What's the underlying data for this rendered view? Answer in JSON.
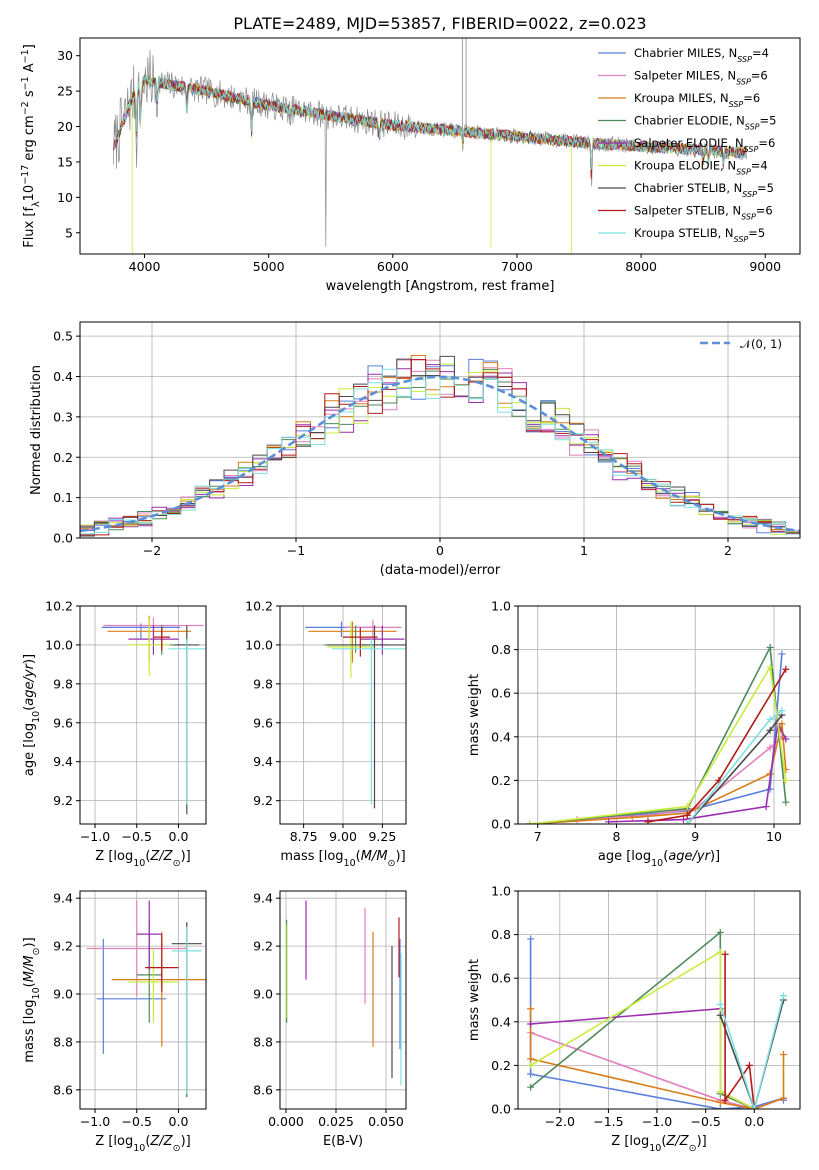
{
  "figure": {
    "title": "PLATE=2489, MJD=53857, FIBERID=0022, z=0.023"
  },
  "legend_models": [
    {
      "name": "Chabrier MILES, N_SSP=4",
      "base": "Chabrier MILES, N",
      "sub": "SSP",
      "tail": "=4",
      "color": "#5a7fe0"
    },
    {
      "name": "Salpeter MILES, N_SSP=6",
      "base": "Salpeter MILES, N",
      "sub": "SSP",
      "tail": "=6",
      "color": "#e37fbd"
    },
    {
      "name": "Kroupa MILES, N_SSP=6",
      "base": "Kroupa MILES, N",
      "sub": "SSP",
      "tail": "=6",
      "color": "#d97d16"
    },
    {
      "name": "Chabrier ELODIE, N_SSP=5",
      "base": "Chabrier ELODIE, N",
      "sub": "SSP",
      "tail": "=5",
      "color": "#4e8a5b"
    },
    {
      "name": "Salpeter ELODIE, N_SSP=6",
      "base": "Salpeter ELODIE, N",
      "sub": "SSP",
      "tail": "=6",
      "color": "#9b2fae"
    },
    {
      "name": "Kroupa ELODIE, N_SSP=4",
      "base": "Kroupa ELODIE, N",
      "sub": "SSP",
      "tail": "=4",
      "color": "#c9ec3c"
    },
    {
      "name": "Chabrier STELIB, N_SSP=5",
      "base": "Chabrier STELIB, N",
      "sub": "SSP",
      "tail": "=5",
      "color": "#4a4a4a"
    },
    {
      "name": "Salpeter STELIB, N_SSP=6",
      "base": "Salpeter STELIB, N",
      "sub": "SSP",
      "tail": "=6",
      "color": "#b31919"
    },
    {
      "name": "Kroupa STELIB, N_SSP=5",
      "base": "Kroupa STELIB, N",
      "sub": "SSP",
      "tail": "=5",
      "color": "#7fe0e0"
    }
  ],
  "chart_data": [
    {
      "id": "spectrum",
      "type": "line",
      "xlabel": "wavelength [Angstrom, rest frame]",
      "ylabel": "Flux [f_λ 10^-17 erg cm^-2 s^-1 A^-1]",
      "xlim": [
        3480,
        9280
      ],
      "ylim": [
        2,
        32.5
      ],
      "xticks": [
        4000,
        5000,
        6000,
        7000,
        8000,
        9000
      ],
      "yticks": [
        5,
        10,
        15,
        20,
        25,
        30
      ],
      "continuum": {
        "x": [
          3750,
          3900,
          4000,
          4500,
          5000,
          5500,
          6000,
          6500,
          7000,
          7500,
          8000,
          8850
        ],
        "y": [
          17,
          24,
          26.5,
          25,
          23,
          21.5,
          20.2,
          19.4,
          18.6,
          17.8,
          17.2,
          16.3
        ]
      },
      "legend_position": "top-right"
    },
    {
      "id": "residuals",
      "type": "step",
      "xlabel": "(data-model)/error",
      "ylabel": "Normed distribution",
      "xlim": [
        -2.5,
        2.5
      ],
      "ylim": [
        0,
        0.535
      ],
      "xticks": [
        -2,
        -1,
        0,
        1,
        2
      ],
      "yticks": [
        0.0,
        0.1,
        0.2,
        0.3,
        0.4,
        0.5
      ],
      "reference": {
        "name": "N(0,1)",
        "label": "𝒩(0, 1)",
        "mean": 0,
        "sigma": 1,
        "color": "#5b8fd6"
      },
      "bin_width": 0.1,
      "legend_position": "top-right"
    },
    {
      "id": "age-vs-metallicity",
      "type": "errorbar",
      "xlabel": "Z [log10(Z/Z⊙)]",
      "ylabel": "age [log10(age/yr)]",
      "xlim": [
        -1.18,
        0.33
      ],
      "ylim": [
        9.08,
        10.2
      ],
      "xticks": [
        -1.0,
        -0.5,
        0.0
      ],
      "yticks": [
        9.2,
        9.4,
        9.6,
        9.8,
        10.0,
        10.2
      ],
      "points": [
        {
          "x": -0.45,
          "y": 10.09,
          "xerr": 0.47,
          "yerr": [
            0.06,
            0.02
          ],
          "color": "#5a7fe0"
        },
        {
          "x": -0.3,
          "y": 10.1,
          "xerr": 0.6,
          "yerr": [
            0.06,
            0.04
          ],
          "color": "#e37fbd"
        },
        {
          "x": -0.35,
          "y": 10.07,
          "xerr": 0.5,
          "yerr": [
            0.15,
            0.08
          ],
          "color": "#d97d16"
        },
        {
          "x": -0.2,
          "y": 10.0,
          "xerr": 0.35,
          "yerr": [
            0.05,
            0.1
          ],
          "color": "#4e8a5b"
        },
        {
          "x": -0.3,
          "y": 10.03,
          "xerr": 0.3,
          "yerr": [
            0.08,
            0.07
          ],
          "color": "#9b2fae"
        },
        {
          "x": -0.35,
          "y": 10.0,
          "xerr": 0.25,
          "yerr": [
            0.16,
            0.14
          ],
          "color": "#c9ec3c"
        },
        {
          "x": 0.1,
          "y": 10.0,
          "xerr": 0.15,
          "yerr": [
            0.87,
            0.1
          ],
          "color": "#4a4a4a"
        },
        {
          "x": -0.2,
          "y": 10.04,
          "xerr": 0.1,
          "yerr": [
            0.07,
            0.05
          ],
          "color": "#b31919"
        },
        {
          "x": 0.1,
          "y": 9.98,
          "xerr": 0.22,
          "yerr": [
            0.8,
            0.05
          ],
          "color": "#7fe0e0"
        }
      ]
    },
    {
      "id": "age-vs-mass",
      "type": "errorbar",
      "xlabel": "mass [log10(M/M⊙)]",
      "ylabel": "",
      "xlim": [
        8.6,
        9.4
      ],
      "ylim": [
        9.08,
        10.2
      ],
      "xticks": [
        8.75,
        9.0,
        9.25
      ],
      "yticks": [
        9.2,
        9.4,
        9.6,
        9.8,
        10.0,
        10.2
      ],
      "points": [
        {
          "x": 8.99,
          "y": 10.09,
          "xerr": 0.23,
          "yerr": [
            0.05,
            0.03
          ],
          "color": "#5a7fe0"
        },
        {
          "x": 9.19,
          "y": 10.09,
          "xerr": 0.18,
          "yerr": [
            0.05,
            0.04
          ],
          "color": "#e37fbd"
        },
        {
          "x": 9.06,
          "y": 10.07,
          "xerr": 0.28,
          "yerr": [
            0.16,
            0.05
          ],
          "color": "#d97d16"
        },
        {
          "x": 9.08,
          "y": 10.0,
          "xerr": 0.2,
          "yerr": [
            0.04,
            0.1
          ],
          "color": "#4e8a5b"
        },
        {
          "x": 9.25,
          "y": 10.03,
          "xerr": 0.14,
          "yerr": [
            0.08,
            0.07
          ],
          "color": "#9b2fae"
        },
        {
          "x": 9.05,
          "y": 9.99,
          "xerr": 0.15,
          "yerr": [
            0.16,
            0.13
          ],
          "color": "#c9ec3c"
        },
        {
          "x": 9.2,
          "y": 10.0,
          "xerr": 0.3,
          "yerr": [
            0.84,
            0.1
          ],
          "color": "#4a4a4a"
        },
        {
          "x": 9.11,
          "y": 10.04,
          "xerr": 0.11,
          "yerr": [
            0.1,
            0.05
          ],
          "color": "#b31919"
        },
        {
          "x": 9.18,
          "y": 9.98,
          "xerr": 0.25,
          "yerr": [
            0.8,
            0.05
          ],
          "color": "#7fe0e0"
        }
      ]
    },
    {
      "id": "mass-weight-vs-age",
      "type": "line",
      "xlabel": "age [log10(age/yr)]",
      "ylabel": "mass weight",
      "xlim": [
        6.75,
        10.33
      ],
      "ylim": [
        0,
        1
      ],
      "xticks": [
        7,
        8,
        9,
        10
      ],
      "yticks": [
        0.0,
        0.2,
        0.4,
        0.6,
        0.8,
        1.0
      ],
      "series": [
        {
          "color": "#5a7fe0",
          "x": [
            6.9,
            8.9,
            9.95,
            10.1
          ],
          "y": [
            0.0,
            0.06,
            0.16,
            0.78
          ]
        },
        {
          "color": "#e37fbd",
          "x": [
            6.9,
            7.5,
            8.4,
            9.0,
            9.95,
            10.1
          ],
          "y": [
            0.0,
            0.02,
            0.04,
            0.07,
            0.35,
            0.4
          ]
        },
        {
          "color": "#d97d16",
          "x": [
            6.9,
            8.2,
            8.9,
            9.95,
            10.1,
            10.15
          ],
          "y": [
            0.0,
            0.03,
            0.05,
            0.23,
            0.46,
            0.25
          ]
        },
        {
          "color": "#4e8a5b",
          "x": [
            6.9,
            8.9,
            9.95,
            10.15
          ],
          "y": [
            0.0,
            0.07,
            0.81,
            0.1
          ]
        },
        {
          "color": "#9b2fae",
          "x": [
            7.9,
            8.85,
            9.9,
            10.05,
            10.15
          ],
          "y": [
            0.01,
            0.02,
            0.08,
            0.46,
            0.39
          ]
        },
        {
          "color": "#c9ec3c",
          "x": [
            6.9,
            8.9,
            9.95,
            10.15
          ],
          "y": [
            0.0,
            0.08,
            0.72,
            0.2
          ]
        },
        {
          "color": "#4a4a4a",
          "x": [
            8.9,
            9.95,
            10.1
          ],
          "y": [
            0.0,
            0.43,
            0.5
          ]
        },
        {
          "color": "#b31919",
          "x": [
            8.4,
            8.9,
            9.3,
            10.15
          ],
          "y": [
            0.01,
            0.04,
            0.2,
            0.71
          ]
        },
        {
          "color": "#7fe0e0",
          "x": [
            8.9,
            9.95,
            10.1
          ],
          "y": [
            0.0,
            0.48,
            0.52
          ]
        }
      ]
    },
    {
      "id": "mass-vs-metallicity",
      "type": "errorbar",
      "xlabel": "Z [log10(Z/Z⊙)]",
      "ylabel": "mass [log10(M/M⊙)]",
      "xlim": [
        -1.18,
        0.33
      ],
      "ylim": [
        8.52,
        9.43
      ],
      "xticks": [
        -1.0,
        -0.5,
        0.0
      ],
      "yticks": [
        8.6,
        8.8,
        9.0,
        9.2,
        9.4
      ],
      "points": [
        {
          "x": -0.9,
          "y": 8.98,
          "xerr": [
            0.08,
            0.75
          ],
          "yerr": [
            0.23,
            0.25
          ],
          "color": "#5a7fe0"
        },
        {
          "x": -0.5,
          "y": 9.19,
          "xerr": 0.6,
          "yerr": [
            0.2,
            0.2
          ],
          "color": "#e37fbd"
        },
        {
          "x": -0.2,
          "y": 9.06,
          "xerr": 0.6,
          "yerr": [
            0.28,
            0.2
          ],
          "color": "#d97d16"
        },
        {
          "x": -0.35,
          "y": 9.08,
          "xerr": 0.15,
          "yerr": [
            0.2,
            0.23
          ],
          "color": "#4e8a5b"
        },
        {
          "x": -0.35,
          "y": 9.25,
          "xerr": 0.15,
          "yerr": [
            0.15,
            0.14
          ],
          "color": "#9b2fae"
        },
        {
          "x": -0.3,
          "y": 9.05,
          "xerr": 0.3,
          "yerr": [
            0.17,
            0.14
          ],
          "color": "#c9ec3c"
        },
        {
          "x": 0.1,
          "y": 9.21,
          "xerr": 0.18,
          "yerr": [
            0.64,
            0.09
          ],
          "color": "#4a4a4a"
        },
        {
          "x": -0.2,
          "y": 9.11,
          "xerr": 0.2,
          "yerr": [
            0.1,
            0.14
          ],
          "color": "#b31919"
        },
        {
          "x": 0.1,
          "y": 9.18,
          "xerr": 0.18,
          "yerr": [
            0.6,
            0.1
          ],
          "color": "#7fe0e0"
        }
      ]
    },
    {
      "id": "mass-vs-extinction",
      "type": "errorbar",
      "xlabel": "E(B-V)",
      "ylabel": "",
      "xlim": [
        -0.003,
        0.06
      ],
      "ylim": [
        8.52,
        9.43
      ],
      "xticks": [
        0.0,
        0.025,
        0.05
      ],
      "xticklabels": [
        "0.000",
        "0.025",
        "0.050"
      ],
      "yticks": [
        8.6,
        8.8,
        9.0,
        9.2,
        9.4
      ],
      "points": [
        {
          "x": 0.057,
          "y": 9.0,
          "xerr": 0,
          "yerr": [
            0.23,
            0.23
          ],
          "color": "#5a7fe0"
        },
        {
          "x": 0.0395,
          "y": 9.18,
          "xerr": 0,
          "yerr": [
            0.22,
            0.18
          ],
          "color": "#e37fbd"
        },
        {
          "x": 0.0435,
          "y": 9.02,
          "xerr": 0,
          "yerr": [
            0.24,
            0.24
          ],
          "color": "#d97d16"
        },
        {
          "x": 0.0003,
          "y": 9.08,
          "xerr": 0,
          "yerr": [
            0.2,
            0.23
          ],
          "color": "#4e8a5b"
        },
        {
          "x": 0.01,
          "y": 9.23,
          "xerr": 0,
          "yerr": [
            0.17,
            0.16
          ],
          "color": "#9b2fae"
        },
        {
          "x": 0.0,
          "y": 9.07,
          "xerr": 0,
          "yerr": [
            0.17,
            0.22
          ],
          "color": "#c9ec3c"
        },
        {
          "x": 0.053,
          "y": 9.0,
          "xerr": 0,
          "yerr": [
            0.35,
            0.2
          ],
          "color": "#4a4a4a"
        },
        {
          "x": 0.0565,
          "y": 9.17,
          "xerr": 0,
          "yerr": [
            0.1,
            0.15
          ],
          "color": "#b31919"
        },
        {
          "x": 0.0575,
          "y": 8.95,
          "xerr": 0,
          "yerr": [
            0.33,
            0.22
          ],
          "color": "#7fe0e0"
        }
      ]
    },
    {
      "id": "mass-weight-vs-metallicity",
      "type": "line",
      "xlabel": "Z [log10(Z/Z⊙)]",
      "ylabel": "mass weight",
      "xlim": [
        -2.43,
        0.47
      ],
      "ylim": [
        0,
        1
      ],
      "xticks": [
        -2.0,
        -1.5,
        -1.0,
        -0.5,
        0.0
      ],
      "yticks": [
        0.0,
        0.2,
        0.4,
        0.6,
        0.8,
        1.0
      ],
      "series": [
        {
          "color": "#5a7fe0",
          "x": [
            -2.3,
            -2.3,
            -0.35,
            0.0,
            0.3,
            0.3
          ],
          "y": [
            0.78,
            0.16,
            0.0,
            0.01,
            0.05,
            0.04
          ]
        },
        {
          "color": "#e37fbd",
          "x": [
            -2.3,
            -0.35,
            0.0,
            0.3
          ],
          "y": [
            0.35,
            0.04,
            0.0,
            0.05
          ]
        },
        {
          "color": "#d97d16",
          "x": [
            -2.3,
            -2.3,
            -0.35,
            0.0,
            0.3,
            0.3
          ],
          "y": [
            0.46,
            0.23,
            0.03,
            0.0,
            0.05,
            0.25
          ]
        },
        {
          "color": "#4e8a5b",
          "x": [
            -2.3,
            -0.35,
            -0.35,
            0.0
          ],
          "y": [
            0.1,
            0.81,
            0.07,
            0.0
          ]
        },
        {
          "color": "#9b2fae",
          "x": [
            -2.3,
            -0.35,
            -0.35,
            0.0
          ],
          "y": [
            0.39,
            0.46,
            0.08,
            0.0
          ]
        },
        {
          "color": "#c9ec3c",
          "x": [
            -2.3,
            -0.35,
            -0.35,
            0.0
          ],
          "y": [
            0.2,
            0.72,
            0.08,
            0.0
          ]
        },
        {
          "color": "#4a4a4a",
          "x": [
            -0.35,
            0.0,
            0.3
          ],
          "y": [
            0.43,
            0.0,
            0.5
          ]
        },
        {
          "color": "#b31919",
          "x": [
            -0.3,
            -0.3,
            -0.05,
            0.0
          ],
          "y": [
            0.71,
            0.04,
            0.2,
            0.0
          ]
        },
        {
          "color": "#7fe0e0",
          "x": [
            -0.35,
            0.0,
            0.3
          ],
          "y": [
            0.48,
            0.0,
            0.52
          ]
        }
      ]
    }
  ]
}
